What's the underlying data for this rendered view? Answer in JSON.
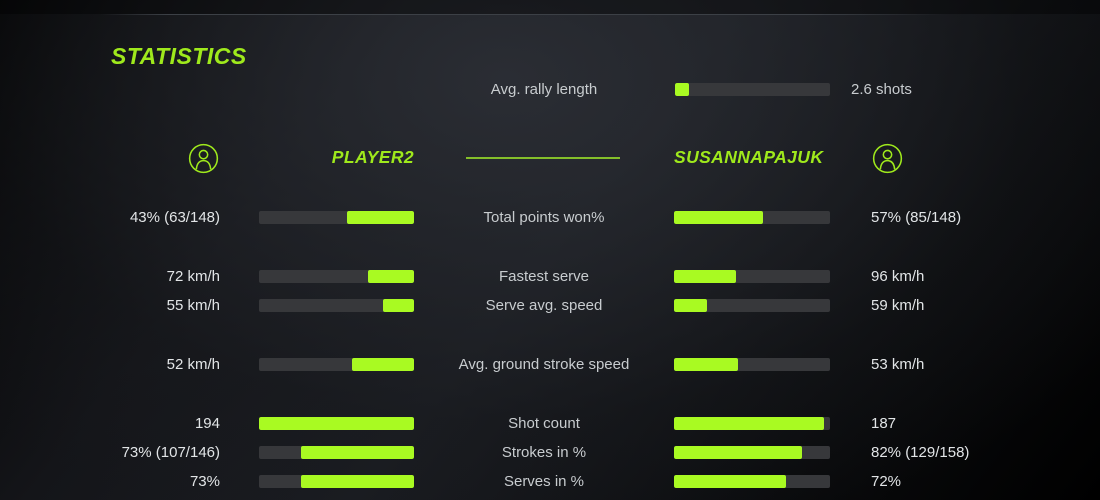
{
  "title": "STATISTICS",
  "colors": {
    "accent_green": "#9fe91c",
    "bar_fill_green": "#a9fa22",
    "bar_track_gray": "#37383b",
    "name_divider_green": "#84bf2a",
    "label_text": "#c8cccf",
    "value_text": "#e2e5e7",
    "background": "#17181c"
  },
  "rally": {
    "label": "Avg. rally length",
    "value": "2.6 shots",
    "fill_pct": 9
  },
  "players": {
    "left": {
      "name": "PLAYER2",
      "avatar_icon": "user-icon"
    },
    "right": {
      "name": "SUSANNAPAJUK",
      "avatar_icon": "user-icon"
    }
  },
  "stats": {
    "rows": [
      {
        "label": "Total points won%",
        "left_value": "43% (63/148)",
        "right_value": "57% (85/148)",
        "left_pct": 43,
        "right_pct": 57
      },
      {
        "label": "Fastest serve",
        "left_value": "72 km/h",
        "right_value": "96 km/h",
        "left_pct": 30,
        "right_pct": 40
      },
      {
        "label": "Serve avg. speed",
        "left_value": "55 km/h",
        "right_value": "59 km/h",
        "left_pct": 20,
        "right_pct": 21
      },
      {
        "label": "Avg. ground stroke speed",
        "left_value": "52 km/h",
        "right_value": "53 km/h",
        "left_pct": 40,
        "right_pct": 41
      },
      {
        "label": "Shot count",
        "left_value": "194",
        "right_value": "187",
        "left_pct": 100,
        "right_pct": 96
      },
      {
        "label": "Strokes in %",
        "left_value": "73% (107/146)",
        "right_value": "82% (129/158)",
        "left_pct": 73,
        "right_pct": 82
      },
      {
        "label": "Serves in %",
        "left_value": "73%",
        "right_value": "72%",
        "left_pct": 73,
        "right_pct": 72
      }
    ]
  }
}
